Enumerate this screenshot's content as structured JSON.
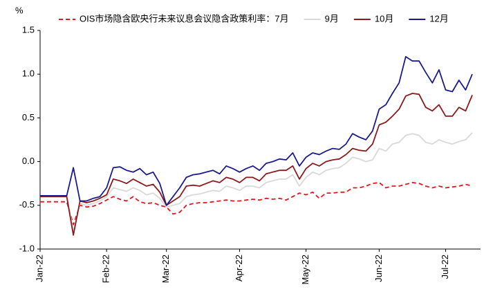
{
  "chart_data": {
    "type": "line",
    "y_label": "%",
    "ylim": [
      -1.0,
      1.5
    ],
    "yticks": [
      {
        "value": -1.0,
        "label": "-1.0"
      },
      {
        "value": -0.5,
        "label": "-0.5"
      },
      {
        "value": 0,
        "label": "0.0"
      },
      {
        "value": 0.5,
        "label": "0.5"
      },
      {
        "value": 1.0,
        "label": "1.0"
      },
      {
        "value": 1.5,
        "label": "1.5"
      }
    ],
    "grid": false,
    "legend": "top",
    "categories": [
      "Jan-22",
      null,
      null,
      null,
      null,
      null,
      null,
      null,
      null,
      null,
      "Feb-22",
      null,
      null,
      null,
      null,
      null,
      null,
      null,
      null,
      "Mar-22",
      null,
      null,
      null,
      null,
      null,
      null,
      null,
      null,
      null,
      null,
      "Apr-22",
      null,
      null,
      null,
      null,
      null,
      null,
      null,
      null,
      null,
      "May-22",
      null,
      null,
      null,
      null,
      null,
      null,
      null,
      null,
      null,
      null,
      "Jun-22",
      null,
      null,
      null,
      null,
      null,
      null,
      null,
      null,
      null,
      "Jul-22",
      null,
      null,
      null,
      null
    ],
    "series": [
      {
        "name": "OIS市场隐含欧央行未来议息会议隐含政策利率：7月",
        "color": "#e8141b",
        "dash": true,
        "values": [
          -0.46,
          -0.46,
          -0.46,
          -0.46,
          -0.46,
          -0.72,
          -0.5,
          -0.52,
          -0.51,
          -0.48,
          -0.44,
          -0.4,
          -0.43,
          -0.45,
          -0.4,
          -0.46,
          -0.48,
          -0.47,
          -0.5,
          -0.52,
          -0.6,
          -0.58,
          -0.5,
          -0.48,
          -0.47,
          -0.47,
          -0.46,
          -0.45,
          -0.44,
          -0.45,
          -0.45,
          -0.44,
          -0.43,
          -0.44,
          -0.42,
          -0.43,
          -0.42,
          -0.44,
          -0.4,
          -0.36,
          -0.38,
          -0.35,
          -0.42,
          -0.36,
          -0.36,
          -0.35,
          -0.35,
          -0.3,
          -0.3,
          -0.28,
          -0.25,
          -0.24,
          -0.3,
          -0.28,
          -0.28,
          -0.26,
          -0.24,
          -0.25,
          -0.28,
          -0.3,
          -0.28,
          -0.3,
          -0.29,
          -0.28,
          -0.26,
          -0.28
        ]
      },
      {
        "name": "9月",
        "color": "#d9d9d9",
        "dash": false,
        "values": [
          -0.39,
          -0.39,
          -0.39,
          -0.39,
          -0.39,
          -0.8,
          -0.48,
          -0.5,
          -0.48,
          -0.45,
          -0.4,
          -0.3,
          -0.32,
          -0.34,
          -0.3,
          -0.33,
          -0.38,
          -0.36,
          -0.42,
          -0.52,
          -0.5,
          -0.48,
          -0.4,
          -0.38,
          -0.37,
          -0.35,
          -0.33,
          -0.34,
          -0.28,
          -0.3,
          -0.33,
          -0.28,
          -0.28,
          -0.3,
          -0.24,
          -0.22,
          -0.2,
          -0.2,
          -0.15,
          -0.28,
          -0.18,
          -0.12,
          -0.15,
          -0.1,
          -0.08,
          -0.07,
          -0.02,
          0.05,
          0.03,
          0.0,
          0.02,
          0.15,
          0.12,
          0.2,
          0.22,
          0.3,
          0.32,
          0.3,
          0.22,
          0.2,
          0.25,
          0.22,
          0.2,
          0.23,
          0.25,
          0.33
        ]
      },
      {
        "name": "10月",
        "color": "#8b1a1a",
        "dash": false,
        "values": [
          -0.4,
          -0.4,
          -0.4,
          -0.4,
          -0.4,
          -0.84,
          -0.45,
          -0.47,
          -0.45,
          -0.42,
          -0.38,
          -0.2,
          -0.22,
          -0.25,
          -0.2,
          -0.24,
          -0.28,
          -0.26,
          -0.35,
          -0.5,
          -0.45,
          -0.4,
          -0.28,
          -0.27,
          -0.28,
          -0.25,
          -0.22,
          -0.24,
          -0.18,
          -0.2,
          -0.24,
          -0.18,
          -0.18,
          -0.22,
          -0.14,
          -0.12,
          -0.1,
          -0.1,
          -0.05,
          -0.2,
          -0.08,
          -0.02,
          -0.05,
          0.0,
          0.02,
          0.03,
          0.08,
          0.15,
          0.13,
          0.12,
          0.2,
          0.42,
          0.45,
          0.52,
          0.6,
          0.75,
          0.78,
          0.77,
          0.62,
          0.58,
          0.65,
          0.52,
          0.52,
          0.62,
          0.58,
          0.76
        ]
      },
      {
        "name": "12月",
        "color": "#1a1a8c",
        "dash": false,
        "values": [
          -0.39,
          -0.39,
          -0.39,
          -0.39,
          -0.39,
          -0.07,
          -0.45,
          -0.45,
          -0.42,
          -0.4,
          -0.3,
          -0.07,
          -0.06,
          -0.1,
          -0.12,
          -0.08,
          -0.15,
          -0.12,
          -0.25,
          -0.5,
          -0.4,
          -0.3,
          -0.18,
          -0.15,
          -0.14,
          -0.12,
          -0.1,
          -0.14,
          -0.05,
          -0.08,
          -0.12,
          -0.08,
          -0.05,
          -0.1,
          -0.02,
          0.0,
          0.03,
          0.02,
          0.1,
          -0.05,
          0.05,
          0.1,
          0.08,
          0.12,
          0.15,
          0.14,
          0.2,
          0.32,
          0.28,
          0.25,
          0.35,
          0.6,
          0.65,
          0.78,
          0.9,
          1.2,
          1.15,
          1.15,
          1.02,
          0.9,
          1.05,
          0.82,
          0.8,
          0.93,
          0.82,
          1.0
        ]
      }
    ]
  }
}
